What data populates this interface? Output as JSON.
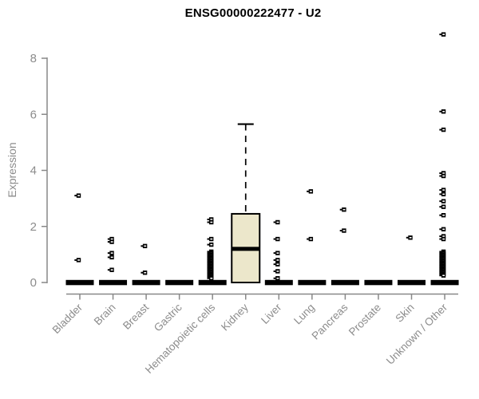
{
  "chart_data": {
    "type": "boxplot",
    "title": "ENSG00000222477 - U2",
    "ylabel": "Expression",
    "xlabel": "",
    "ylim": [
      0,
      9.2
    ],
    "yticks": [
      0,
      2,
      4,
      6,
      8
    ],
    "grid": false,
    "legend": null,
    "colors": {
      "background": "#ffffff",
      "axis": "#888888",
      "tick_text": "#8c8c8c",
      "title_text": "#000000",
      "box_fill": "#ece7cb",
      "box_stroke": "#000000",
      "marker": "#000000"
    },
    "categories": [
      "Bladder",
      "Brain",
      "Breast",
      "Gastric",
      "Hematopoietic cells",
      "Kidney",
      "Liver",
      "Lung",
      "Pancreas",
      "Prostate",
      "Skin",
      "Unknown / Other"
    ],
    "series": [
      {
        "name": "Bladder",
        "median": 0,
        "q1": 0,
        "q3": 0,
        "whisker_low": 0,
        "whisker_high": 0,
        "outliers": [
          3.1,
          0.8
        ]
      },
      {
        "name": "Brain",
        "median": 0,
        "q1": 0,
        "q3": 0,
        "whisker_low": 0,
        "whisker_high": 0,
        "outliers": [
          1.55,
          1.45,
          1.05,
          0.9,
          0.45
        ]
      },
      {
        "name": "Breast",
        "median": 0,
        "q1": 0,
        "q3": 0,
        "whisker_low": 0,
        "whisker_high": 0,
        "outliers": [
          1.3,
          0.35
        ]
      },
      {
        "name": "Gastric",
        "median": 0,
        "q1": 0,
        "q3": 0,
        "whisker_low": 0,
        "whisker_high": 0,
        "outliers": []
      },
      {
        "name": "Hematopoietic cells",
        "median": 0,
        "q1": 0,
        "q3": 0,
        "whisker_low": 0,
        "whisker_high": 0,
        "outliers": [
          2.25,
          2.15,
          1.55,
          1.35,
          1.1,
          1.05,
          1.0,
          0.95,
          0.9,
          0.85,
          0.8,
          0.75,
          0.7,
          0.65,
          0.6,
          0.55,
          0.5,
          0.45,
          0.4,
          0.35,
          0.3,
          0.25,
          0.2,
          0.15
        ]
      },
      {
        "name": "Kidney",
        "median": 1.2,
        "q1": 0,
        "q3": 2.45,
        "whisker_low": 0,
        "whisker_high": 5.65,
        "outliers": []
      },
      {
        "name": "Liver",
        "median": 0,
        "q1": 0,
        "q3": 0,
        "whisker_low": 0,
        "whisker_high": 0,
        "outliers": [
          2.15,
          1.55,
          1.05,
          0.8,
          0.65,
          0.4,
          0.15
        ]
      },
      {
        "name": "Lung",
        "median": 0,
        "q1": 0,
        "q3": 0,
        "whisker_low": 0,
        "whisker_high": 0,
        "outliers": [
          3.25,
          1.55
        ]
      },
      {
        "name": "Pancreas",
        "median": 0,
        "q1": 0,
        "q3": 0,
        "whisker_low": 0,
        "whisker_high": 0,
        "outliers": [
          2.6,
          1.85
        ]
      },
      {
        "name": "Prostate",
        "median": 0,
        "q1": 0,
        "q3": 0,
        "whisker_low": 0,
        "whisker_high": 0,
        "outliers": []
      },
      {
        "name": "Skin",
        "median": 0,
        "q1": 0,
        "q3": 0,
        "whisker_low": 0,
        "whisker_high": 0,
        "outliers": [
          1.6
        ]
      },
      {
        "name": "Unknown / Other",
        "median": 0,
        "q1": 0,
        "q3": 0,
        "whisker_low": 0,
        "whisker_high": 0,
        "outliers": [
          8.85,
          6.1,
          5.45,
          3.9,
          3.8,
          3.3,
          3.15,
          2.9,
          2.7,
          2.4,
          1.9,
          1.65,
          1.55,
          1.1,
          1.05,
          1.0,
          0.95,
          0.9,
          0.85,
          0.8,
          0.75,
          0.7,
          0.65,
          0.6,
          0.55,
          0.5,
          0.45,
          0.4,
          0.35,
          0.3,
          0.25
        ]
      }
    ]
  }
}
